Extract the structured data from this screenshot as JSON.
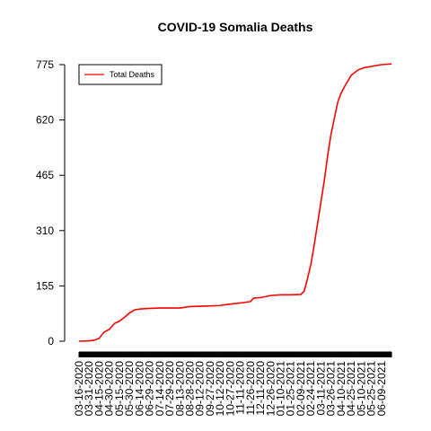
{
  "chart_data": {
    "type": "line",
    "title": "COVID-19 Somalia Deaths",
    "xlabel": "",
    "ylabel": "",
    "ylim": [
      0,
      775
    ],
    "y_ticks": [
      0,
      155,
      310,
      465,
      620,
      775
    ],
    "x_start": "2020-03-16",
    "x_end": "2021-06-24",
    "x_tick_labels": [
      "03-16-2020",
      "03-31-2020",
      "04-15-2020",
      "04-30-2020",
      "05-15-2020",
      "05-30-2020",
      "06-14-2020",
      "06-29-2020",
      "07-14-2020",
      "07-29-2020",
      "08-13-2020",
      "08-28-2020",
      "09-12-2020",
      "09-27-2020",
      "10-12-2020",
      "10-27-2020",
      "11-11-2020",
      "11-26-2020",
      "12-11-2020",
      "12-26-2020",
      "01-10-2021",
      "01-25-2021",
      "02-09-2021",
      "02-24-2021",
      "03-11-2021",
      "03-26-2021",
      "04-10-2021",
      "04-25-2021",
      "05-10-2021",
      "05-25-2021",
      "06-09-2021"
    ],
    "legend": {
      "position": "top-left",
      "entries": [
        "Total Deaths"
      ]
    },
    "grid": false,
    "series": [
      {
        "name": "Total Deaths",
        "color": "#ff0000",
        "points": [
          [
            "2020-03-16",
            0
          ],
          [
            "2020-04-01",
            1
          ],
          [
            "2020-04-08",
            3
          ],
          [
            "2020-04-15",
            8
          ],
          [
            "2020-04-22",
            25
          ],
          [
            "2020-04-30",
            33
          ],
          [
            "2020-05-08",
            50
          ],
          [
            "2020-05-15",
            56
          ],
          [
            "2020-05-22",
            66
          ],
          [
            "2020-05-30",
            79
          ],
          [
            "2020-06-07",
            88
          ],
          [
            "2020-06-14",
            90
          ],
          [
            "2020-06-29",
            92
          ],
          [
            "2020-07-14",
            93
          ],
          [
            "2020-08-13",
            93
          ],
          [
            "2020-08-28",
            97
          ],
          [
            "2020-09-12",
            98
          ],
          [
            "2020-09-27",
            99
          ],
          [
            "2020-10-12",
            100
          ],
          [
            "2020-10-27",
            104
          ],
          [
            "2020-11-11",
            107
          ],
          [
            "2020-11-26",
            111
          ],
          [
            "2020-12-01",
            121
          ],
          [
            "2020-12-11",
            122
          ],
          [
            "2020-12-26",
            128
          ],
          [
            "2021-01-10",
            130
          ],
          [
            "2021-01-25",
            130
          ],
          [
            "2021-02-09",
            131
          ],
          [
            "2021-02-14",
            140
          ],
          [
            "2021-02-19",
            175
          ],
          [
            "2021-02-24",
            215
          ],
          [
            "2021-03-01",
            270
          ],
          [
            "2021-03-06",
            330
          ],
          [
            "2021-03-11",
            390
          ],
          [
            "2021-03-16",
            450
          ],
          [
            "2021-03-21",
            520
          ],
          [
            "2021-03-26",
            580
          ],
          [
            "2021-03-31",
            625
          ],
          [
            "2021-04-05",
            670
          ],
          [
            "2021-04-10",
            695
          ],
          [
            "2021-04-15",
            713
          ],
          [
            "2021-04-25",
            745
          ],
          [
            "2021-05-05",
            760
          ],
          [
            "2021-05-15",
            767
          ],
          [
            "2021-05-25",
            770
          ],
          [
            "2021-06-09",
            775
          ],
          [
            "2021-06-24",
            777
          ]
        ]
      }
    ]
  }
}
